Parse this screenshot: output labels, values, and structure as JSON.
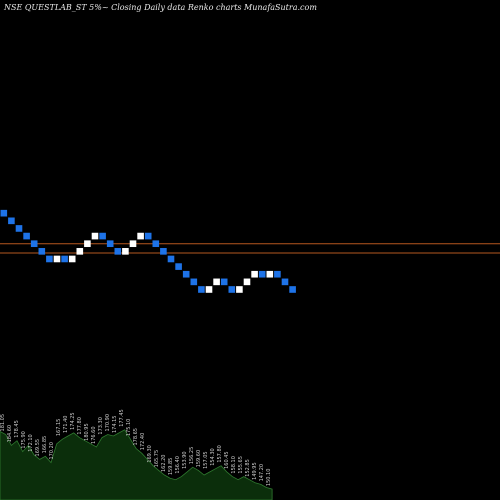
{
  "chart_data": {
    "type": "renko",
    "title": "NSE QUESTLAB_ST 5%~  Closing Daily data  Renko  charts MunafaSutra.com",
    "bricks": [
      {
        "dir": "down",
        "value": 220.0
      },
      {
        "dir": "down",
        "value": 213.0
      },
      {
        "dir": "down",
        "value": 206.0
      },
      {
        "dir": "down",
        "value": 199.0
      },
      {
        "dir": "down",
        "value": 192.0
      },
      {
        "dir": "down",
        "value": 185.0
      },
      {
        "dir": "down",
        "value": 178.0
      },
      {
        "dir": "up",
        "value": 185.0
      },
      {
        "dir": "down",
        "value": 178.0
      },
      {
        "dir": "up",
        "value": 185.0
      },
      {
        "dir": "up",
        "value": 192.0
      },
      {
        "dir": "up",
        "value": 199.0
      },
      {
        "dir": "up",
        "value": 206.0
      },
      {
        "dir": "down",
        "value": 199.0
      },
      {
        "dir": "down",
        "value": 192.0
      },
      {
        "dir": "down",
        "value": 185.0
      },
      {
        "dir": "up",
        "value": 192.0
      },
      {
        "dir": "up",
        "value": 199.0
      },
      {
        "dir": "up",
        "value": 206.0
      },
      {
        "dir": "down",
        "value": 199.0
      },
      {
        "dir": "down",
        "value": 192.0
      },
      {
        "dir": "down",
        "value": 185.0
      },
      {
        "dir": "down",
        "value": 178.0
      },
      {
        "dir": "down",
        "value": 171.0
      },
      {
        "dir": "down",
        "value": 164.0
      },
      {
        "dir": "down",
        "value": 157.0
      },
      {
        "dir": "down",
        "value": 150.0
      },
      {
        "dir": "up",
        "value": 157.0
      },
      {
        "dir": "up",
        "value": 164.0
      },
      {
        "dir": "down",
        "value": 157.0
      },
      {
        "dir": "down",
        "value": 150.0
      },
      {
        "dir": "up",
        "value": 157.0
      },
      {
        "dir": "up",
        "value": 164.0
      },
      {
        "dir": "up",
        "value": 171.0
      },
      {
        "dir": "down",
        "value": 164.0
      },
      {
        "dir": "up",
        "value": 171.0
      },
      {
        "dir": "down",
        "value": 164.0
      },
      {
        "dir": "down",
        "value": 157.0
      },
      {
        "dir": "down",
        "value": 150.0
      }
    ],
    "reference_lines": [
      195.5,
      187.0
    ],
    "price_labels": [
      "181.05",
      "184.60",
      "178.45",
      "175.90",
      "172.10",
      "169.55",
      "166.85",
      "170.20",
      "167.15",
      "171.40",
      "174.25",
      "177.80",
      "180.95",
      "176.60",
      "173.30",
      "170.90",
      "174.15",
      "177.45",
      "175.10",
      "178.65",
      "172.40",
      "169.30",
      "165.75",
      "162.20",
      "159.85",
      "156.40",
      "153.90",
      "156.25",
      "159.60",
      "157.05",
      "154.30",
      "157.80",
      "160.45",
      "158.10",
      "155.65",
      "152.85",
      "149.95",
      "147.20",
      "150.10"
    ],
    "volume": [
      88,
      84,
      70,
      76,
      62,
      70,
      58,
      52,
      56,
      48,
      72,
      78,
      82,
      86,
      80,
      76,
      72,
      68,
      80,
      84,
      82,
      86,
      90,
      78,
      66,
      60,
      52,
      44,
      38,
      32,
      28,
      26,
      30,
      36,
      42,
      38,
      32,
      36,
      40,
      44,
      36,
      30,
      26,
      30,
      26,
      22,
      20,
      16,
      14
    ],
    "colors": {
      "up": "#ffffff",
      "down": "#1e73e8",
      "line": "#b5571f",
      "volume_fill": "#0b2e0b",
      "volume_stroke": "#2f7a2f",
      "label": "#cfcfcf",
      "background": "#000000"
    }
  }
}
